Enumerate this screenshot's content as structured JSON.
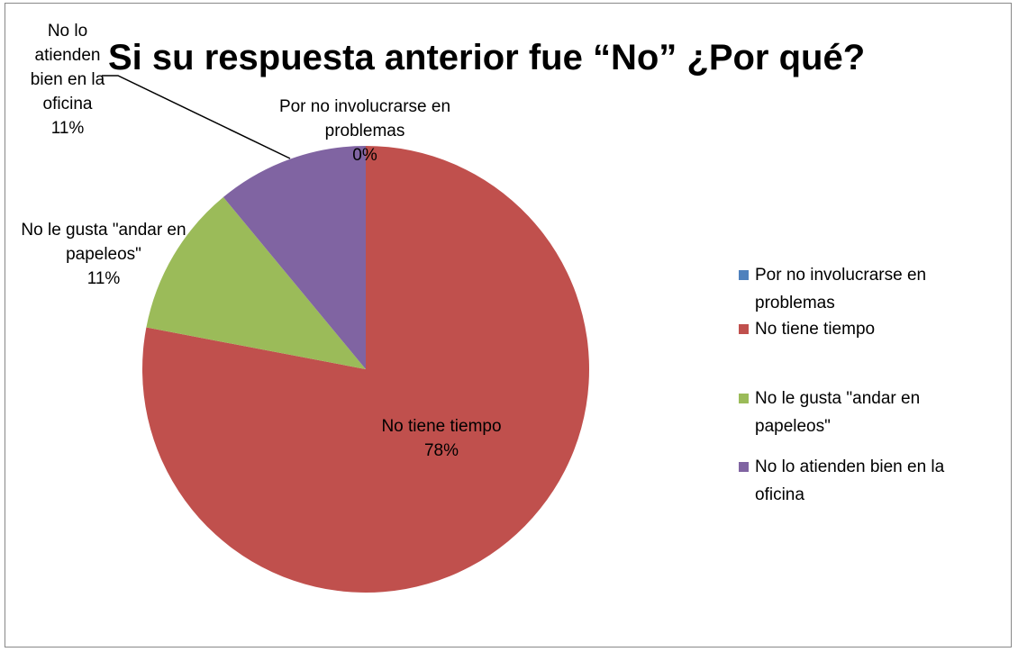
{
  "chart_data": {
    "type": "pie",
    "title": "Si su respuesta anterior fue “No” ¿Por qué?",
    "categories": [
      "Por no involucrarse en problemas",
      "No tiene tiempo",
      "No le gusta \"andar en papeleos\"",
      "No lo atienden bien en la oficina"
    ],
    "values": [
      0,
      78,
      11,
      11
    ],
    "value_labels": [
      "0%",
      "78%",
      "11%",
      "11%"
    ],
    "colors": [
      "#4f81bd",
      "#c0504d",
      "#9bbb59",
      "#8064a2"
    ],
    "legend": "right"
  }
}
